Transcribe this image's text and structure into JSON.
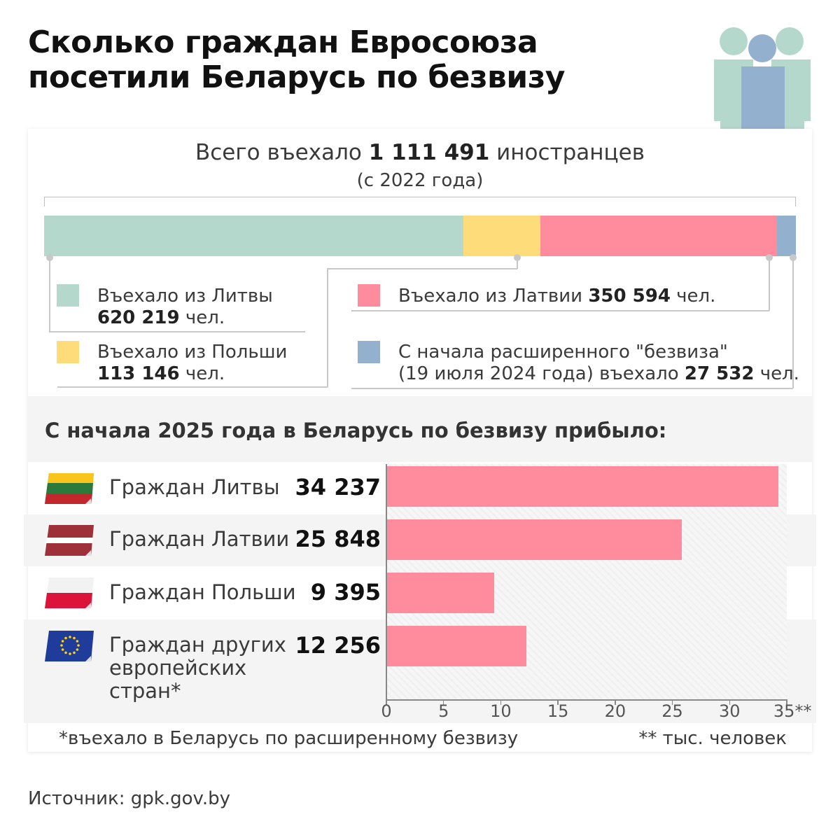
{
  "title_lines": [
    "Сколько граждан Евросоюза",
    "посетили Беларусь по безвизу"
  ],
  "summary": {
    "prefix": "Всего въехало ",
    "total": "1 111 491",
    "suffix": " иностранцев",
    "since": "(с 2022 года)"
  },
  "stacked": [
    {
      "label": "Въехало из Литвы",
      "value": 620219,
      "value_text": "620 219",
      "unit": " чел.",
      "color": "#b4d8cb"
    },
    {
      "label": "Въехало из Польши",
      "value": 113146,
      "value_text": "113 146",
      "unit": " чел.",
      "color": "#ffdc7a"
    },
    {
      "label": "Въехало из Латвии ",
      "value": 350594,
      "value_text": "350 594",
      "unit": " чел.",
      "color": "#ff8c9c"
    },
    {
      "label": "С начала расширенного \"безвиза\"",
      "label2": "(19 июля 2024 года) въехало ",
      "value": 27532,
      "value_text": "27 532",
      "unit": " чел.",
      "color": "#93b0cf"
    }
  ],
  "section_title": "С начала 2025 года в Беларусь по безвизу прибыло:",
  "chart_data": {
    "type": "bar",
    "orientation": "horizontal",
    "title": "С начала 2025 года в Беларусь по безвизу прибыло:",
    "categories": [
      "Граждан Литвы",
      "Граждан Латвии",
      "Граждан Польши",
      "Граждан других европейских стран*"
    ],
    "category_lines": [
      [
        "Граждан Литвы"
      ],
      [
        "Граждан Латвии"
      ],
      [
        "Граждан Польши"
      ],
      [
        "Граждан других",
        "европейских",
        "стран*"
      ]
    ],
    "values": [
      34.237,
      25.848,
      9.395,
      12.256
    ],
    "value_labels": [
      "34 237",
      "25 848",
      "9 395",
      "12 256"
    ],
    "xlim": [
      0,
      35
    ],
    "xticks": [
      "0",
      "5",
      "10",
      "15",
      "20",
      "25",
      "30",
      "35**"
    ],
    "xlabel": "",
    "ylabel": "",
    "bar_color": "#ff8c9c"
  },
  "footnotes": {
    "left": "*въехало в Беларусь по расширенному безвизу",
    "right": "** тыс. человек"
  },
  "source": "Источник: gpk.gov.by"
}
